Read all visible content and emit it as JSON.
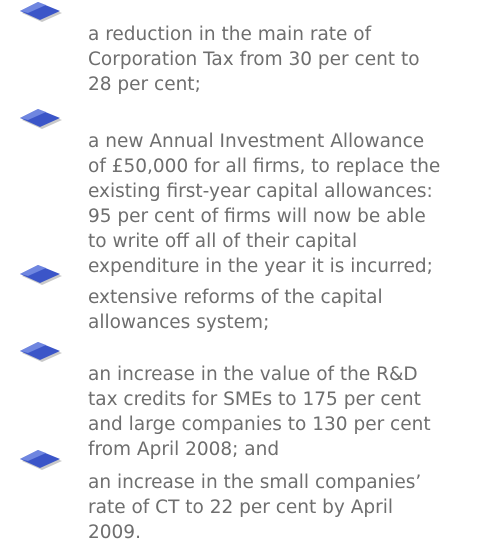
{
  "list": {
    "items": [
      {
        "lines": [
          "a reduction in the main rate of",
          "Corporation Tax from 30 per cent to",
          "28 per cent;"
        ]
      },
      {
        "lines": [
          "a new Annual Investment Allowance",
          "of £50,000 for all firms, to replace the",
          "existing first-year capital allowances:",
          "95 per cent of firms will now be able",
          "to write off all of their capital",
          "expenditure in the year it is incurred;"
        ]
      },
      {
        "lines": [
          "extensive reforms of the capital",
          "allowances system;"
        ]
      },
      {
        "lines": [
          "an increase in the value of the R&D",
          "tax credits for SMEs to 175 per cent",
          "and large companies to 130 per cent",
          "from April 2008; and"
        ]
      },
      {
        "lines": [
          "an increase in the small companies’",
          "rate of CT to 22 per cent by April",
          "2009."
        ]
      }
    ]
  }
}
